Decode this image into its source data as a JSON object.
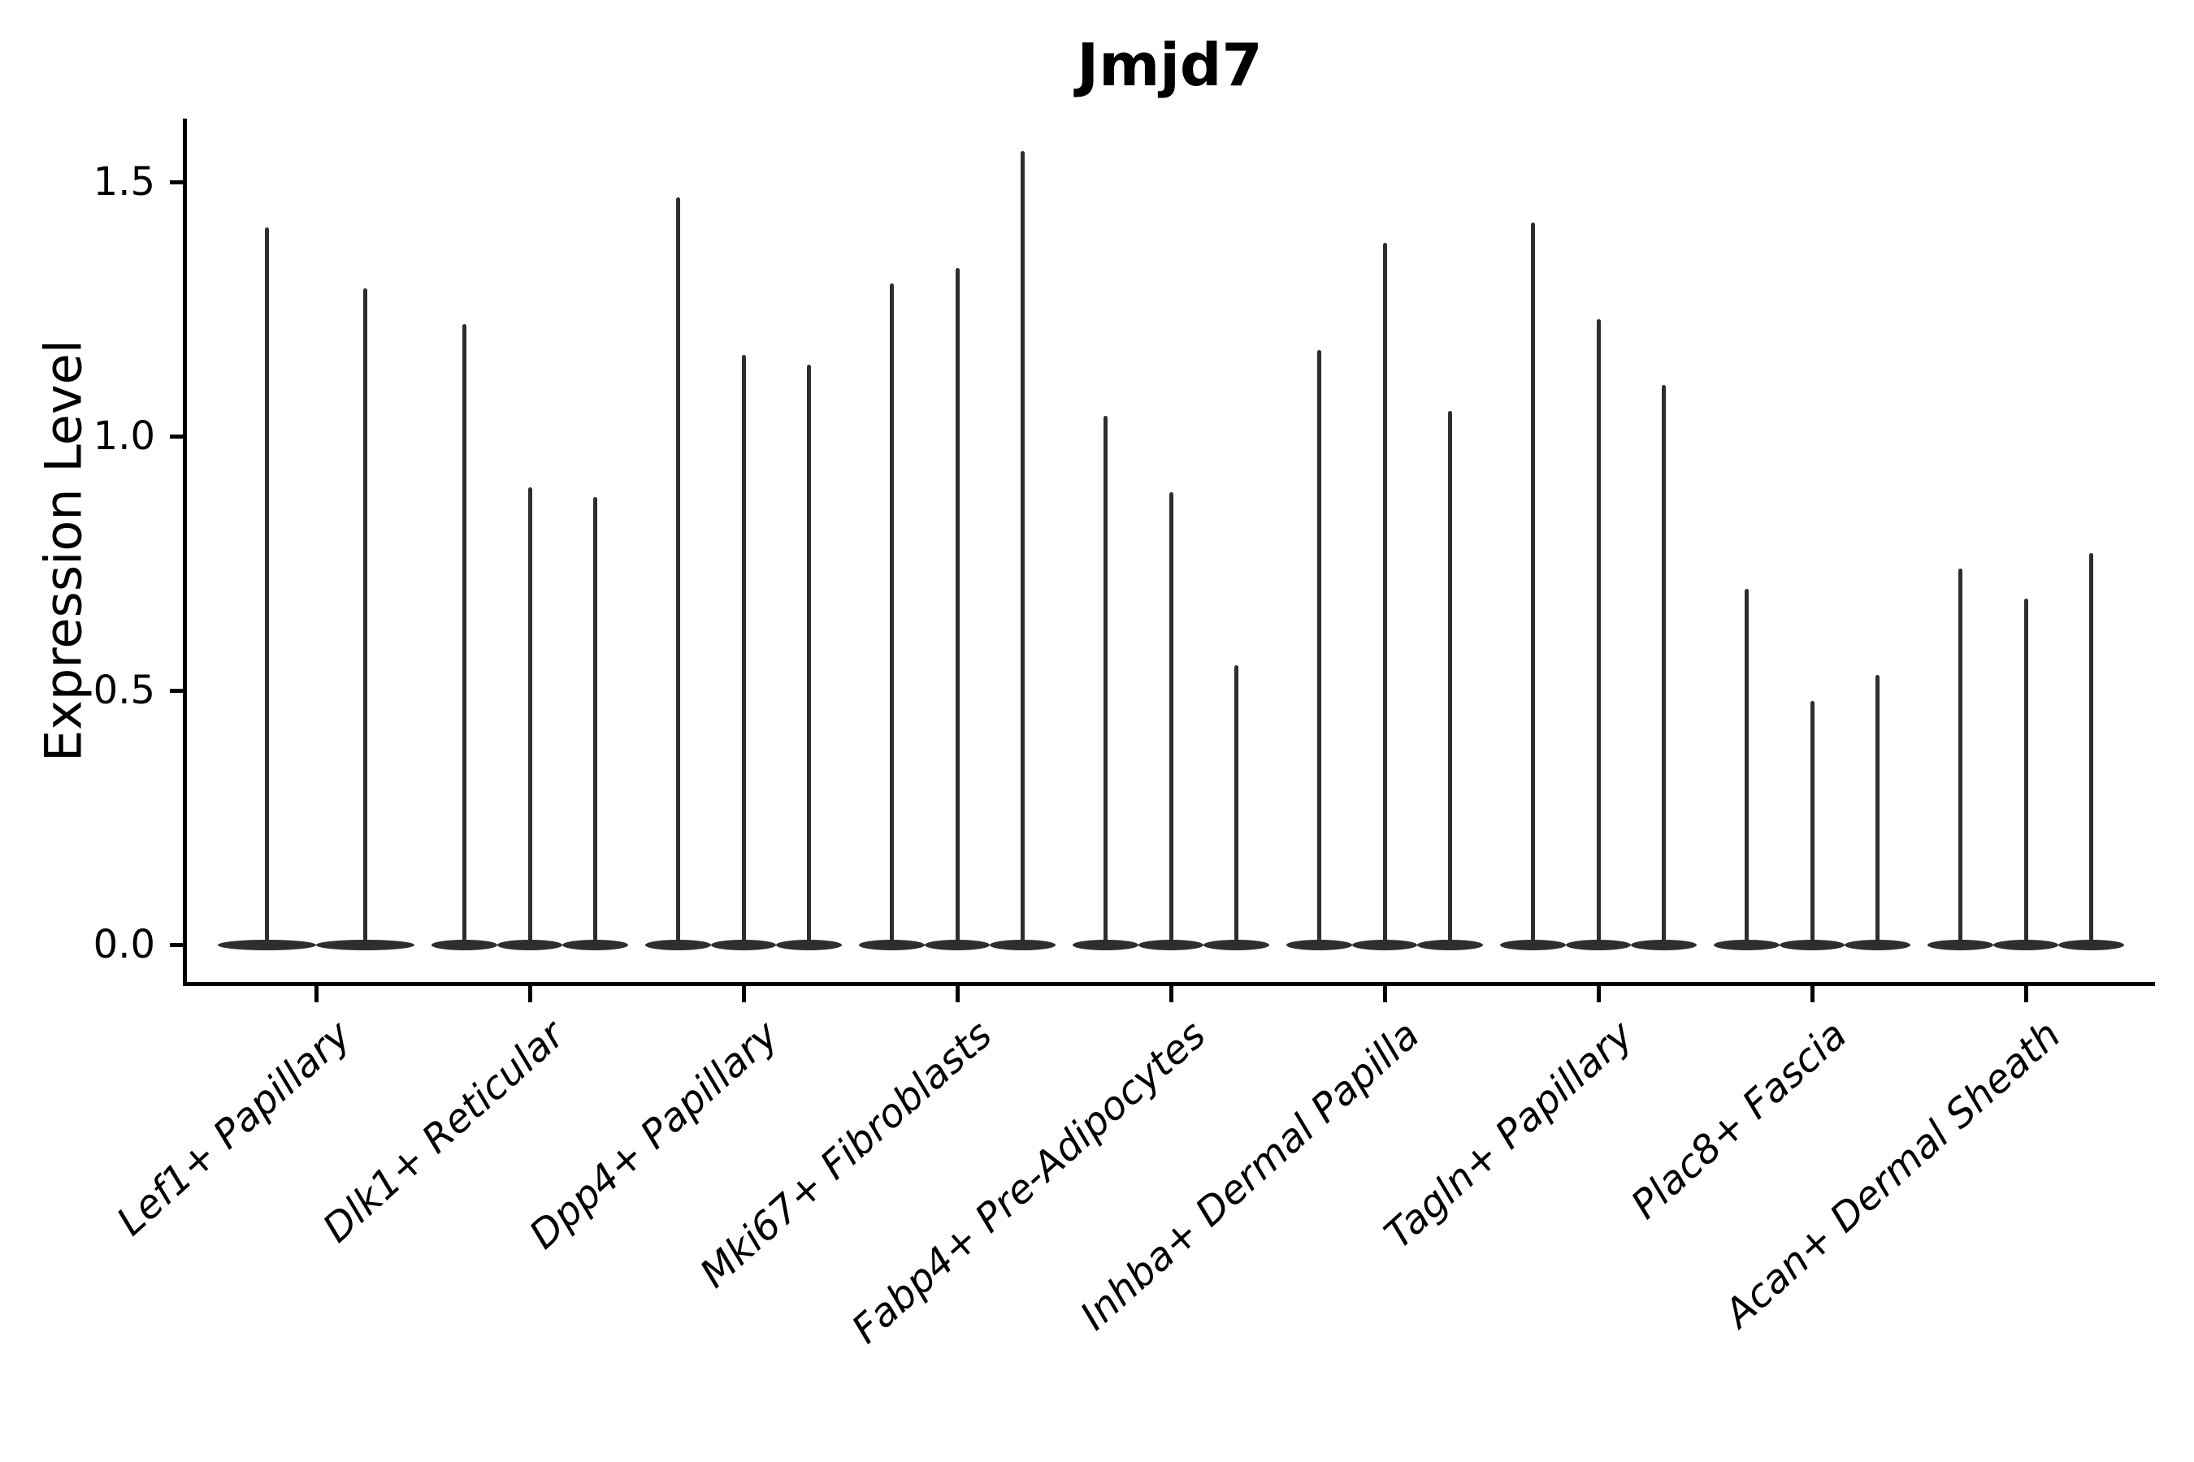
{
  "title": "Jmjd7",
  "chart_data": {
    "type": "violin",
    "title": "Jmjd7",
    "xlabel": "",
    "ylabel": "Expression Level",
    "ylim": [
      -0.075,
      1.63
    ],
    "grid": false,
    "legend": "none",
    "yticks": [
      {
        "value": 0.0,
        "label": "0.0"
      },
      {
        "value": 0.5,
        "label": "0.5"
      },
      {
        "value": 1.0,
        "label": "1.0"
      },
      {
        "value": 1.5,
        "label": "1.5"
      }
    ],
    "categories": [
      "Lef1+ Papillary",
      "Dlk1+ Reticular",
      "Dpp4+ Papillary",
      "Mki67+ Fibroblasts",
      "Fabp4+ Pre-Adipocytes",
      "Inhba+ Dermal Papilla",
      "Tagln+ Papillary",
      "Plac8+ Fascia",
      "Acan+ Dermal Sheath"
    ],
    "violin_shape": "zero-inflated: wide flat bulge at 0 with a thin spike rising to the max expression value",
    "groups": [
      {
        "label": "Lef1+ Papillary",
        "violin_max": [
          1.41,
          1.29
        ]
      },
      {
        "label": "Dlk1+ Reticular",
        "violin_max": [
          1.22,
          0.9,
          0.88
        ]
      },
      {
        "label": "Dpp4+ Papillary",
        "violin_max": [
          1.47,
          1.16,
          1.14
        ]
      },
      {
        "label": "Mki67+ Fibroblasts",
        "violin_max": [
          1.3,
          1.33,
          1.56
        ]
      },
      {
        "label": "Fabp4+ Pre-Adipocytes",
        "violin_max": [
          1.04,
          0.89,
          0.55
        ]
      },
      {
        "label": "Inhba+ Dermal Papilla",
        "violin_max": [
          1.17,
          1.38,
          1.05
        ]
      },
      {
        "label": "Tagln+ Papillary",
        "violin_max": [
          1.42,
          1.23,
          1.1
        ]
      },
      {
        "label": "Plac8+ Fascia",
        "violin_max": [
          0.7,
          0.48,
          0.53
        ]
      },
      {
        "label": "Acan+ Dermal Sheath",
        "violin_max": [
          0.74,
          0.68,
          0.77
        ]
      }
    ],
    "colors": {
      "violin": "#2e2e2e",
      "axis": "#000000",
      "text": "#000000",
      "background": "#ffffff"
    }
  }
}
